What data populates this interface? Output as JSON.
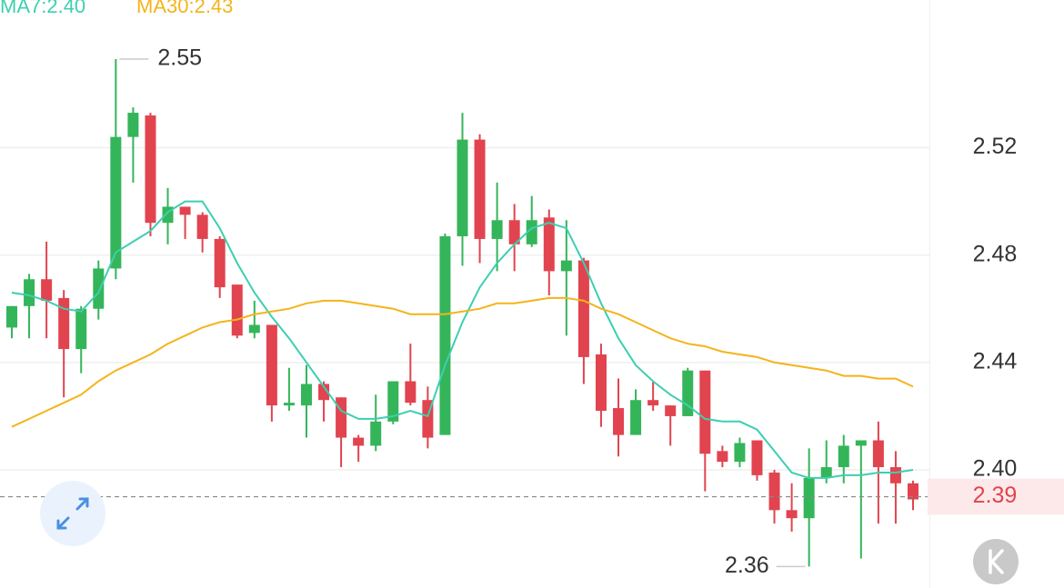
{
  "chart_data": {
    "type": "candlestick",
    "open": [
      2.453,
      2.461,
      2.471,
      2.464,
      2.445,
      2.46,
      2.475,
      2.524,
      2.532,
      2.492,
      2.498,
      2.495,
      2.486,
      2.469,
      2.451,
      2.454,
      2.424,
      2.424,
      2.432,
      2.427,
      2.412,
      2.409,
      2.418,
      2.433,
      2.426,
      2.413,
      2.487,
      2.523,
      2.486,
      2.493,
      2.484,
      2.494,
      2.474,
      2.478,
      2.443,
      2.423,
      2.413,
      2.426,
      2.424,
      2.42,
      2.437,
      2.407,
      2.403,
      2.411,
      2.399,
      2.385,
      2.382,
      2.397,
      2.401,
      2.409,
      2.411,
      2.401,
      2.395
    ],
    "high": [
      2.461,
      2.473,
      2.485,
      2.467,
      2.461,
      2.478,
      2.553,
      2.535,
      2.533,
      2.505,
      2.498,
      2.496,
      2.487,
      2.469,
      2.463,
      2.454,
      2.438,
      2.439,
      2.433,
      2.427,
      2.413,
      2.428,
      2.433,
      2.447,
      2.431,
      2.488,
      2.533,
      2.525,
      2.507,
      2.499,
      2.502,
      2.497,
      2.493,
      2.479,
      2.447,
      2.434,
      2.43,
      2.433,
      2.424,
      2.438,
      2.437,
      2.409,
      2.412,
      2.411,
      2.4,
      2.395,
      2.408,
      2.411,
      2.413,
      2.411,
      2.418,
      2.407,
      2.396
    ],
    "low": [
      2.449,
      2.449,
      2.449,
      2.427,
      2.436,
      2.456,
      2.471,
      2.507,
      2.487,
      2.484,
      2.486,
      2.481,
      2.464,
      2.449,
      2.449,
      2.418,
      2.422,
      2.412,
      2.418,
      2.401,
      2.403,
      2.407,
      2.417,
      2.424,
      2.408,
      2.413,
      2.476,
      2.477,
      2.474,
      2.474,
      2.483,
      2.465,
      2.45,
      2.432,
      2.416,
      2.405,
      2.413,
      2.422,
      2.409,
      2.42,
      2.392,
      2.401,
      2.401,
      2.396,
      2.38,
      2.377,
      2.364,
      2.395,
      2.395,
      2.367,
      2.38,
      2.38,
      2.385
    ],
    "close": [
      2.461,
      2.471,
      2.463,
      2.445,
      2.46,
      2.475,
      2.524,
      2.533,
      2.492,
      2.498,
      2.495,
      2.486,
      2.468,
      2.45,
      2.454,
      2.424,
      2.425,
      2.432,
      2.426,
      2.412,
      2.409,
      2.418,
      2.433,
      2.425,
      2.412,
      2.487,
      2.523,
      2.486,
      2.493,
      2.484,
      2.493,
      2.474,
      2.478,
      2.442,
      2.422,
      2.413,
      2.426,
      2.424,
      2.42,
      2.437,
      2.406,
      2.403,
      2.41,
      2.398,
      2.385,
      2.382,
      2.397,
      2.401,
      2.409,
      2.411,
      2.401,
      2.395,
      2.389
    ],
    "up_color": "#34b55a",
    "down_color": "#e1444f",
    "series": [
      {
        "name": "MA7:2.40",
        "color": "#3ccfb0",
        "values": [
          2.466,
          2.465,
          2.463,
          2.46,
          2.459,
          2.466,
          2.481,
          2.485,
          2.489,
          2.496,
          2.5,
          2.5,
          2.49,
          2.477,
          2.466,
          2.457,
          2.449,
          2.44,
          2.431,
          2.422,
          2.419,
          2.419,
          2.42,
          2.422,
          2.42,
          2.439,
          2.455,
          2.468,
          2.477,
          2.484,
          2.49,
          2.492,
          2.49,
          2.477,
          2.462,
          2.449,
          2.439,
          2.433,
          2.428,
          2.424,
          2.419,
          2.418,
          2.418,
          2.415,
          2.407,
          2.399,
          2.397,
          2.397,
          2.398,
          2.398,
          2.399,
          2.399,
          2.4
        ]
      },
      {
        "name": "MA30:2.43",
        "color": "#f4b41a",
        "values": [
          2.416,
          2.419,
          2.422,
          2.425,
          2.428,
          2.433,
          2.437,
          2.44,
          2.443,
          2.447,
          2.45,
          2.453,
          2.455,
          2.456,
          2.458,
          2.459,
          2.46,
          2.462,
          2.463,
          2.463,
          2.462,
          2.461,
          2.46,
          2.458,
          2.458,
          2.458,
          2.459,
          2.46,
          2.462,
          2.462,
          2.463,
          2.464,
          2.464,
          2.463,
          2.46,
          2.458,
          2.455,
          2.452,
          2.449,
          2.447,
          2.446,
          2.444,
          2.443,
          2.442,
          2.44,
          2.439,
          2.438,
          2.437,
          2.435,
          2.435,
          2.434,
          2.434,
          2.431
        ]
      }
    ],
    "ylim": [
      2.356,
      2.575
    ],
    "yticks": [
      {
        "value": 2.52,
        "label": "2.52"
      },
      {
        "value": 2.48,
        "label": "2.48"
      },
      {
        "value": 2.44,
        "label": "2.44"
      },
      {
        "value": 2.4,
        "label": "2.40"
      }
    ],
    "grid": true,
    "high_label": 2.55,
    "low_label": 2.36,
    "current_price": 2.39
  }
}
